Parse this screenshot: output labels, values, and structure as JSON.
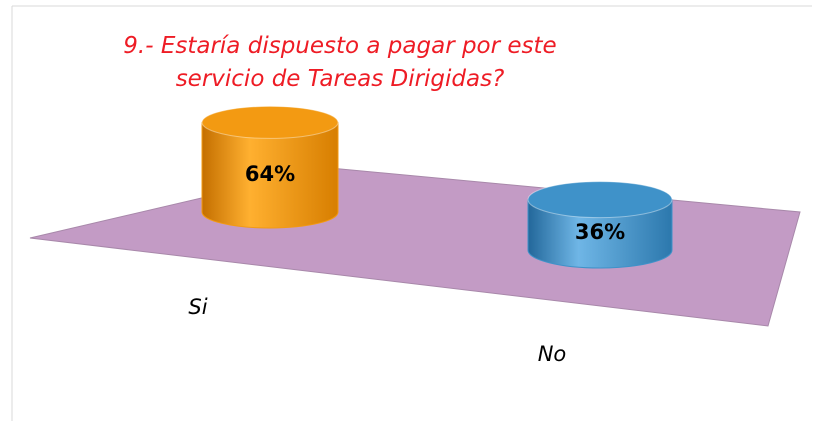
{
  "chart_data": {
    "type": "cylinder",
    "title": "9.- Estaría dispuesto a pagar por este servicio de Tareas Dirigidas?",
    "categories": [
      "Si",
      "No"
    ],
    "values": [
      64,
      36
    ],
    "value_labels": [
      "64%",
      "36%"
    ],
    "colors": [
      "#f39a12",
      "#3f92c9"
    ],
    "floor_color": "#c39bc5"
  }
}
